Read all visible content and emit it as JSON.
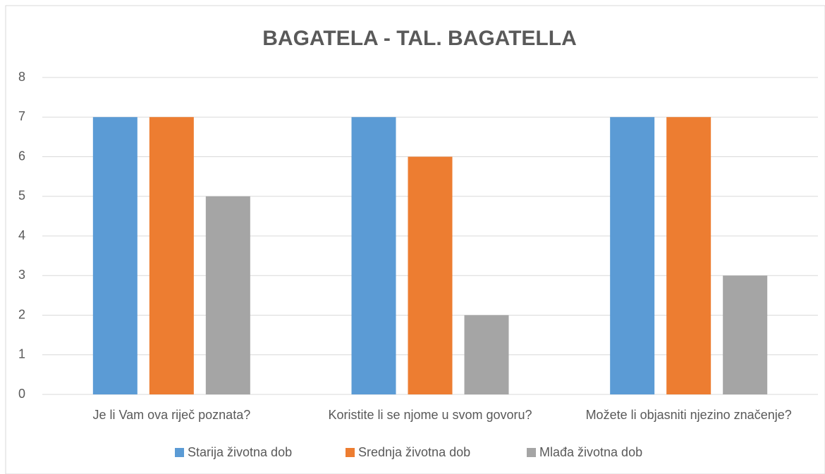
{
  "chart_data": {
    "type": "bar",
    "title": "BAGATELA - TAL. BAGATELLA",
    "categories": [
      "Je li Vam ova riječ poznata?",
      "Koristite li se njome u svom govoru?",
      "Možete li objasniti njezino značenje?"
    ],
    "series": [
      {
        "name": "Starija životna dob",
        "color": "#5b9bd5",
        "values": [
          7,
          7,
          7
        ]
      },
      {
        "name": "Srednja životna dob",
        "color": "#ed7d31",
        "values": [
          7,
          6,
          7
        ]
      },
      {
        "name": "Mlađa životna dob",
        "color": "#a5a5a5",
        "values": [
          5,
          2,
          3
        ]
      }
    ],
    "ylim": [
      0,
      8
    ],
    "yticks": [
      0,
      1,
      2,
      3,
      4,
      5,
      6,
      7,
      8
    ],
    "grid": true,
    "legend": "bottom"
  }
}
